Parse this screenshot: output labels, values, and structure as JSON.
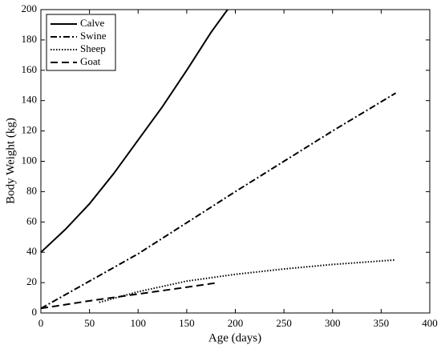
{
  "chart_data": {
    "type": "line",
    "x_label": "Age (days)",
    "y_label": "Body Weight (kg)",
    "xlim": [
      0,
      400
    ],
    "ylim": [
      0,
      200
    ],
    "xticks": [
      0,
      50,
      100,
      150,
      200,
      250,
      300,
      350,
      400
    ],
    "yticks": [
      0,
      20,
      40,
      60,
      80,
      100,
      120,
      140,
      160,
      180,
      200
    ],
    "legend": "upper left",
    "series": [
      {
        "name": "Calve",
        "color": "#000000",
        "dash": "solid",
        "x": [
          0,
          25,
          50,
          75,
          100,
          125,
          150,
          175,
          192
        ],
        "values": [
          40,
          55,
          72,
          92,
          114,
          136,
          160,
          185,
          200
        ]
      },
      {
        "name": "Swine",
        "color": "#000000",
        "dash": "dashdot",
        "x": [
          0,
          100,
          200,
          300,
          365
        ],
        "values": [
          3,
          39,
          80,
          120,
          145
        ]
      },
      {
        "name": "Sheep",
        "color": "#000000",
        "dash": "dotted",
        "x": [
          60,
          100,
          150,
          200,
          250,
          300,
          365
        ],
        "values": [
          7,
          14,
          21,
          25.5,
          29,
          32,
          35
        ]
      },
      {
        "name": "Goat",
        "color": "#000000",
        "dash": "dashed",
        "x": [
          0,
          50,
          100,
          150,
          182
        ],
        "values": [
          3,
          8,
          12.5,
          17,
          20
        ]
      }
    ]
  }
}
